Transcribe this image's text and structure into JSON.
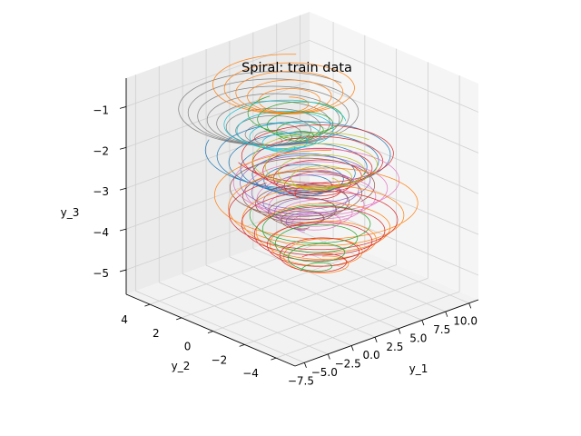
{
  "chart_data": {
    "type": "line",
    "projection": "3d",
    "title": "Spiral: train data",
    "xlabel": "y_1",
    "ylabel": "y_2",
    "zlabel": "y_3",
    "xlim": [
      -8.5,
      11
    ],
    "ylim": [
      -5.2,
      5.5
    ],
    "zlim": [
      -5.6,
      -0.3
    ],
    "xticks": [
      -7.5,
      -5.0,
      -2.5,
      0.0,
      2.5,
      5.0,
      7.5,
      10.0
    ],
    "xtick_labels": [
      "−7.5",
      "−5.0",
      "−2.5",
      "0.0",
      "2.5",
      "5.0",
      "7.5",
      "10.0"
    ],
    "yticks": [
      4,
      2,
      0,
      -2,
      -4
    ],
    "ytick_labels": [
      "4",
      "2",
      "0",
      "−2",
      "−4"
    ],
    "zticks": [
      -1,
      -2,
      -3,
      -4,
      -5
    ],
    "ztick_labels": [
      "−1",
      "−2",
      "−3",
      "−4",
      "−5"
    ],
    "grid": true,
    "legend": "none",
    "series": [
      {
        "color": "#7f7f7f",
        "center": [
          -1.5,
          0.5
        ],
        "z_start": -0.8,
        "z_end": -1.6,
        "r_start": 7.5,
        "r_end": 0.8,
        "turns": 9
      },
      {
        "color": "#ff7f0e",
        "center": [
          1.0,
          1.0
        ],
        "z_start": -0.5,
        "z_end": -1.0,
        "r_start": 6.0,
        "r_end": 1.5,
        "turns": 5
      },
      {
        "color": "#2ca02c",
        "center": [
          0.5,
          0.0
        ],
        "z_start": -1.0,
        "z_end": -1.6,
        "r_start": 4.0,
        "r_end": 1.0,
        "turns": 4
      },
      {
        "color": "#1f77b4",
        "center": [
          0.0,
          -0.5
        ],
        "z_start": -1.8,
        "z_end": -2.7,
        "r_start": 7.5,
        "r_end": 2.0,
        "turns": 6
      },
      {
        "color": "#d62728",
        "center": [
          1.5,
          -0.5
        ],
        "z_start": -1.9,
        "z_end": -3.0,
        "r_start": 6.5,
        "r_end": 1.5,
        "turns": 6
      },
      {
        "color": "#e377c2",
        "center": [
          0.5,
          -1.0
        ],
        "z_start": -2.4,
        "z_end": -3.6,
        "r_start": 7.0,
        "r_end": 1.5,
        "turns": 6
      },
      {
        "color": "#9467bd",
        "center": [
          1.0,
          0.0
        ],
        "z_start": -2.6,
        "z_end": -3.8,
        "r_start": 5.5,
        "r_end": 1.0,
        "turns": 5
      },
      {
        "color": "#8c564b",
        "center": [
          1.5,
          0.5
        ],
        "z_start": -2.9,
        "z_end": -3.9,
        "r_start": 6.0,
        "r_end": 1.0,
        "turns": 5
      },
      {
        "color": "#17becf",
        "center": [
          0.5,
          1.0
        ],
        "z_start": -1.4,
        "z_end": -2.0,
        "r_start": 5.0,
        "r_end": 1.0,
        "turns": 4
      },
      {
        "color": "#bcbd22",
        "center": [
          1.0,
          -1.0
        ],
        "z_start": -2.0,
        "z_end": -2.6,
        "r_start": 5.5,
        "r_end": 1.5,
        "turns": 4
      },
      {
        "color": "#ff7f0e",
        "center": [
          2.0,
          -0.5
        ],
        "z_start": -3.0,
        "z_end": -4.8,
        "r_start": 8.5,
        "r_end": 2.0,
        "turns": 6
      },
      {
        "color": "#d62728",
        "center": [
          2.5,
          0.0
        ],
        "z_start": -3.6,
        "z_end": -4.9,
        "r_start": 7.0,
        "r_end": 2.0,
        "turns": 5
      },
      {
        "color": "#2ca02c",
        "center": [
          3.0,
          0.5
        ],
        "z_start": -3.8,
        "z_end": -5.2,
        "r_start": 5.0,
        "r_end": 1.0,
        "turns": 4
      }
    ]
  }
}
